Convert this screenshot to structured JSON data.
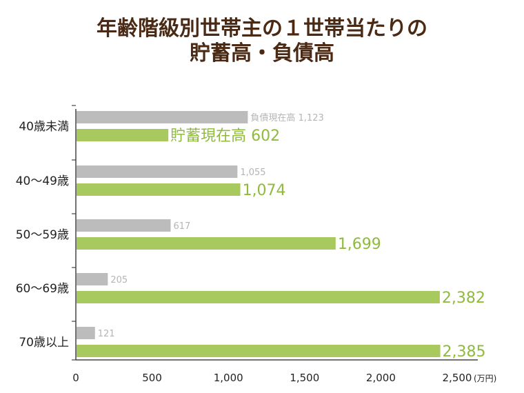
{
  "chart_data": {
    "type": "bar",
    "orientation": "horizontal",
    "title_line1": "年齢階級別世帯主の１世帯当たりの",
    "title_line2": "貯蓄高・負債高",
    "unit_label": "(万円)",
    "categories": [
      "40歳未満",
      "40～49歳",
      "50～59歳",
      "60～69歳",
      "70歳以上"
    ],
    "series": [
      {
        "name": "負債現在高",
        "values": [
          1123,
          1055,
          617,
          205,
          121
        ],
        "color": "#bcbcbc",
        "label_color": "#b5b5b5"
      },
      {
        "name": "貯蓄現在高",
        "values": [
          602,
          1074,
          1699,
          2382,
          2385
        ],
        "color": "#a8c95d",
        "label_color": "#8fba3e"
      }
    ],
    "xlim": [
      0,
      2500
    ],
    "xticks": [
      0,
      500,
      1000,
      1500,
      2000,
      2500
    ],
    "xtick_labels": [
      "0",
      "500",
      "1,000",
      "1,500",
      "2,000",
      "2,500"
    ],
    "debt_labels": [
      "負債現在高 1,123",
      "1,055",
      "617",
      "205",
      "121"
    ],
    "savings_labels": [
      "貯蓄現在高 602",
      "1,074",
      "1,699",
      "2,382",
      "2,385"
    ]
  }
}
